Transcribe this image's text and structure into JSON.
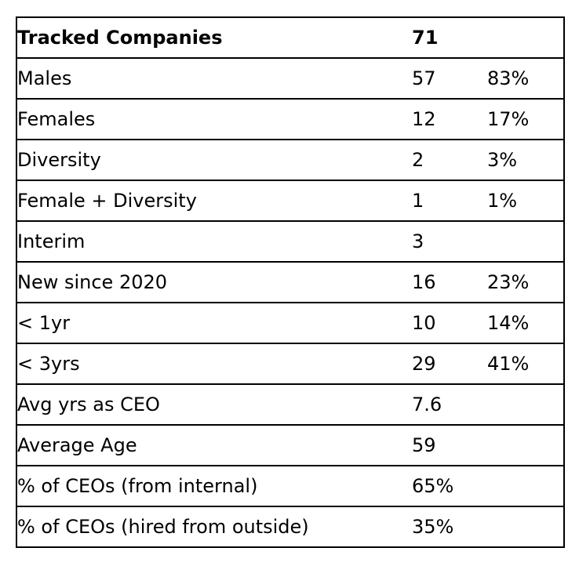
{
  "table": {
    "rows": [
      {
        "label": "Tracked Companies",
        "count": "71",
        "pct": ""
      },
      {
        "label": "Males",
        "count": "57",
        "pct": "83%"
      },
      {
        "label": "Females",
        "count": "12",
        "pct": "17%"
      },
      {
        "label": "Diversity",
        "count": "2",
        "pct": "3%"
      },
      {
        "label": "Female + Diversity",
        "count": "1",
        "pct": "1%"
      },
      {
        "label": "Interim",
        "count": "3",
        "pct": ""
      },
      {
        "label": "New since 2020",
        "count": "16",
        "pct": "23%"
      },
      {
        "label": "< 1yr",
        "count": "10",
        "pct": "14%"
      },
      {
        "label": "< 3yrs",
        "count": "29",
        "pct": "41%"
      },
      {
        "label": "Avg yrs as CEO",
        "count": "7.6",
        "pct": ""
      },
      {
        "label": "Average Age",
        "count": "59",
        "pct": ""
      },
      {
        "label": "% of CEOs (from internal)",
        "count": "65%",
        "pct": ""
      },
      {
        "label": "% of CEOs (hired from outside)",
        "count": "35%",
        "pct": ""
      }
    ]
  }
}
